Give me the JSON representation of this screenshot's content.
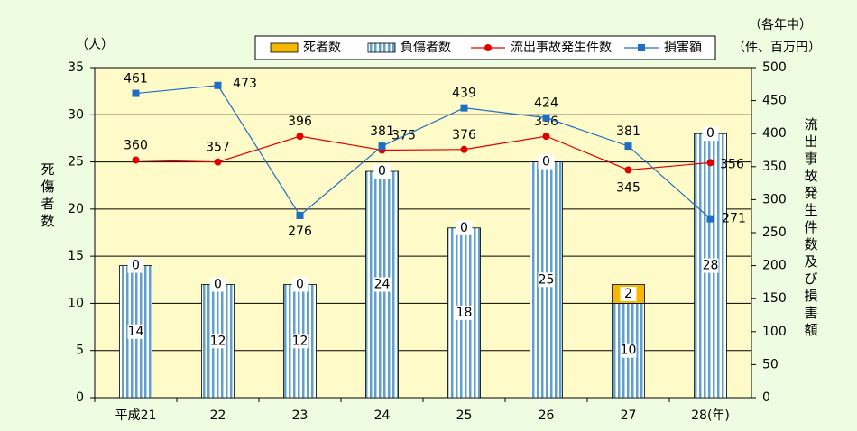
{
  "chart_data": {
    "type": "bar_line",
    "y_unit": "（人）",
    "y_label": "死傷者数",
    "y2_period": "（各年中）",
    "y2_unit": "（件、百万円）",
    "y2_label": "流出事故発生件数及び損害額",
    "categories": [
      "平成21",
      "22",
      "23",
      "24",
      "25",
      "26",
      "27",
      "28(年)"
    ],
    "series": [
      {
        "name": "死者数",
        "type": "bar",
        "color": "#f5b800",
        "values": [
          0,
          0,
          0,
          0,
          0,
          0,
          2,
          0
        ]
      },
      {
        "name": "負傷者数",
        "type": "bar",
        "color": "#5fa0cc",
        "values": [
          14,
          12,
          12,
          24,
          18,
          25,
          10,
          28
        ]
      },
      {
        "name": "流出事故発生件数",
        "type": "line",
        "axis": "y2",
        "color": "#e00000",
        "values": [
          360,
          357,
          396,
          375,
          376,
          396,
          345,
          356
        ]
      },
      {
        "name": "損害額",
        "type": "line",
        "axis": "y2",
        "color": "#1f6fc1",
        "values": [
          461,
          473,
          276,
          381,
          439,
          424,
          381,
          271
        ]
      }
    ],
    "ylim": [
      0,
      35
    ],
    "yticks": [
      0,
      5,
      10,
      15,
      20,
      25,
      30,
      35
    ],
    "y2lim": [
      0,
      500
    ],
    "y2ticks": [
      0,
      50,
      100,
      150,
      200,
      250,
      300,
      350,
      400,
      450,
      500
    ],
    "grid": true
  }
}
